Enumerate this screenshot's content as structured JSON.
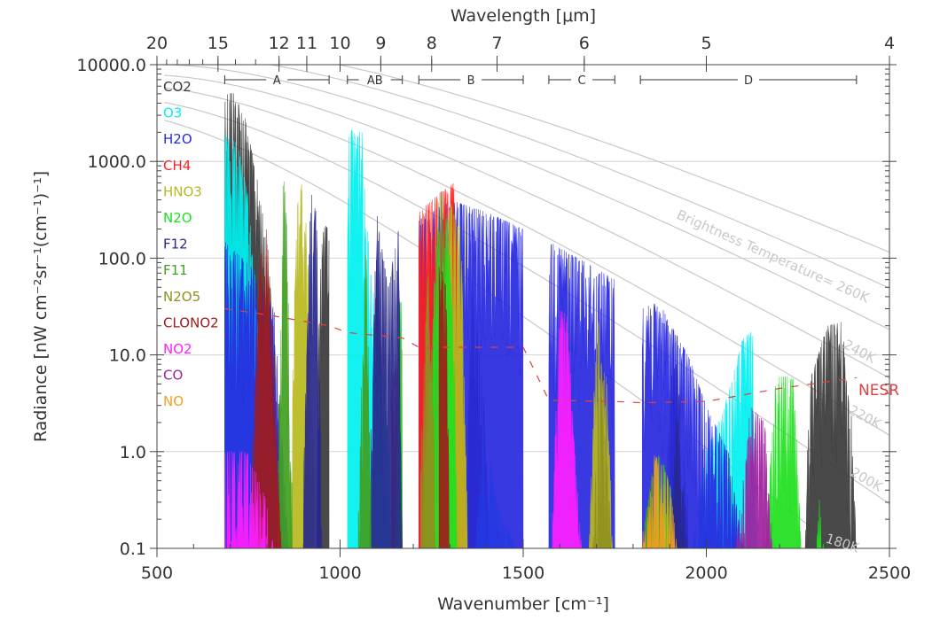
{
  "chart_data": {
    "type": "area",
    "xlabel": "Wavenumber [cm⁻¹]",
    "x2label": "Wavelength [μm]",
    "ylabel": "Radiance [nW cm⁻²sr⁻¹(cm⁻¹)⁻¹]",
    "xlim": [
      500,
      2500
    ],
    "ylim": [
      0.1,
      10000
    ],
    "yscale": "log",
    "grid": "horizontal at decades",
    "x_ticks": [
      "500",
      "1000",
      "1500",
      "2000",
      "2500"
    ],
    "y_ticks": [
      "10000.0",
      "1000.0",
      "100.0",
      "10.0",
      "1.0",
      "0.1"
    ],
    "x2_ticks": [
      {
        "label": "20",
        "um": 20
      },
      {
        "label": "15",
        "um": 15
      },
      {
        "label": "12",
        "um": 12
      },
      {
        "label": "11",
        "um": 11
      },
      {
        "label": "10",
        "um": 10
      },
      {
        "label": "9",
        "um": 9
      },
      {
        "label": "8",
        "um": 8
      },
      {
        "label": "7",
        "um": 7
      },
      {
        "label": "6",
        "um": 6
      },
      {
        "label": "5",
        "um": 5
      },
      {
        "label": "4",
        "um": 4
      }
    ],
    "bands": [
      {
        "label": "A",
        "range": [
          685,
          970
        ]
      },
      {
        "label": "AB",
        "range": [
          1020,
          1170
        ]
      },
      {
        "label": "B",
        "range": [
          1215,
          1500
        ]
      },
      {
        "label": "C",
        "range": [
          1570,
          1750
        ]
      },
      {
        "label": "D",
        "range": [
          1820,
          2410
        ]
      }
    ],
    "brightness_temperature": {
      "label": "Brightness Temperature= 260K",
      "curves": [
        {
          "T": 300,
          "label": ""
        },
        {
          "T": 280,
          "label": ""
        },
        {
          "T": 260,
          "label": "260K"
        },
        {
          "T": 240,
          "label": "240K"
        },
        {
          "T": 220,
          "label": "220K"
        },
        {
          "T": 200,
          "label": "200K"
        },
        {
          "T": 180,
          "label": "180K"
        }
      ],
      "color": "#c8c8c8"
    },
    "nesr": {
      "label": "NESR",
      "color": "#e04040",
      "points": [
        [
          685,
          30
        ],
        [
          800,
          26
        ],
        [
          970,
          20
        ],
        [
          1020,
          17
        ],
        [
          1170,
          15
        ],
        [
          1215,
          12
        ],
        [
          1500,
          12
        ],
        [
          1570,
          3.4
        ],
        [
          1750,
          3.3
        ],
        [
          1820,
          3.2
        ],
        [
          2000,
          3.3
        ],
        [
          2200,
          4.5
        ],
        [
          2410,
          5.8
        ]
      ]
    },
    "series": [
      {
        "name": "CO2",
        "color": "#3a3a3a",
        "envelope": [
          [
            [
              685,
              5000
            ],
            [
              705,
              5500
            ],
            [
              740,
              3000
            ],
            [
              770,
              800
            ],
            [
              800,
              150
            ],
            [
              830,
              5
            ],
            [
              850,
              0.1
            ]
          ],
          [
            [
              935,
              0.1
            ],
            [
              945,
              150
            ],
            [
              960,
              220
            ],
            [
              970,
              200
            ]
          ],
          [
            [
              1080,
              0.1
            ],
            [
              1100,
              150
            ],
            [
              1130,
              0.1
            ]
          ],
          [
            [
              1330,
              0.1
            ],
            [
              1360,
              60
            ],
            [
              1390,
              5
            ],
            [
              1410,
              0.1
            ]
          ],
          [
            [
              1880,
              0.1
            ],
            [
              1910,
              20
            ],
            [
              1950,
              0.3
            ]
          ],
          [
            [
              2270,
              0.1
            ],
            [
              2280,
              5
            ],
            [
              2330,
              20
            ],
            [
              2370,
              22
            ],
            [
              2395,
              3
            ],
            [
              2410,
              0.1
            ]
          ]
        ]
      },
      {
        "name": "O3",
        "color": "#00f0f0",
        "envelope": [
          [
            [
              685,
              2000
            ],
            [
              720,
              1500
            ],
            [
              750,
              400
            ],
            [
              770,
              50
            ],
            [
              790,
              1
            ],
            [
              800,
              0.1
            ]
          ],
          [
            [
              1020,
              1500
            ],
            [
              1030,
              2200
            ],
            [
              1060,
              2000
            ],
            [
              1070,
              300
            ],
            [
              1090,
              50
            ],
            [
              1120,
              5
            ],
            [
              1160,
              0.1
            ]
          ],
          [
            [
              1370,
              0.1
            ],
            [
              1390,
              2
            ],
            [
              1430,
              0.3
            ],
            [
              1480,
              0.1
            ]
          ],
          [
            [
              1960,
              0.1
            ],
            [
              2000,
              1
            ],
            [
              2050,
              3
            ],
            [
              2100,
              15
            ],
            [
              2130,
              18
            ],
            [
              2140,
              0.1
            ]
          ]
        ]
      },
      {
        "name": "H2O",
        "color": "#2828e0",
        "envelope": [
          [
            [
              685,
              150
            ],
            [
              760,
              80
            ],
            [
              820,
              30
            ],
            [
              860,
              0.1
            ]
          ],
          [
            [
              1215,
              250
            ],
            [
              1300,
              400
            ],
            [
              1400,
              300
            ],
            [
              1500,
              200
            ]
          ],
          [
            [
              1570,
              150
            ],
            [
              1650,
              100
            ],
            [
              1750,
              60
            ]
          ],
          [
            [
              1825,
              40
            ],
            [
              1880,
              30
            ],
            [
              1950,
              10
            ],
            [
              2000,
              3
            ],
            [
              2060,
              1
            ],
            [
              2100,
              0.1
            ]
          ]
        ]
      },
      {
        "name": "CH4",
        "color": "#ff2020",
        "envelope": [
          [
            [
              1140,
              5
            ],
            [
              1160,
              20
            ],
            [
              1170,
              15
            ]
          ],
          [
            [
              1215,
              300
            ],
            [
              1280,
              500
            ],
            [
              1310,
              600
            ],
            [
              1330,
              30
            ],
            [
              1345,
              0.1
            ]
          ]
        ]
      },
      {
        "name": "HNO3",
        "color": "#b8b820",
        "envelope": [
          [
            [
              860,
              0.1
            ],
            [
              880,
              300
            ],
            [
              895,
              600
            ],
            [
              910,
              200
            ],
            [
              930,
              0.5
            ]
          ],
          [
            [
              1260,
              1
            ],
            [
              1300,
              400
            ],
            [
              1330,
              200
            ],
            [
              1350,
              0.1
            ]
          ],
          [
            [
              1680,
              0.1
            ],
            [
              1700,
              30
            ],
            [
              1730,
              5
            ],
            [
              1745,
              0.1
            ]
          ]
        ]
      },
      {
        "name": "N2O",
        "color": "#20e020",
        "envelope": [
          [
            [
              1150,
              0.1
            ],
            [
              1165,
              50
            ],
            [
              1170,
              20
            ]
          ],
          [
            [
              1230,
              0.5
            ],
            [
              1270,
              500
            ],
            [
              1290,
              400
            ],
            [
              1310,
              20
            ],
            [
              1320,
              0.1
            ]
          ],
          [
            [
              1840,
              0.1
            ],
            [
              1870,
              1
            ],
            [
              1900,
              0.5
            ],
            [
              1920,
              0.1
            ]
          ],
          [
            [
              2160,
              0.1
            ],
            [
              2190,
              6
            ],
            [
              2240,
              6
            ],
            [
              2260,
              0.1
            ]
          ],
          [
            [
              2300,
              0.1
            ],
            [
              2310,
              0.4
            ],
            [
              2320,
              0.1
            ]
          ]
        ]
      },
      {
        "name": "F12",
        "color": "#28288c",
        "envelope": [
          [
            [
              900,
              0.5
            ],
            [
              920,
              500
            ],
            [
              935,
              300
            ],
            [
              950,
              0.5
            ]
          ],
          [
            [
              1080,
              0.5
            ],
            [
              1100,
              300
            ],
            [
              1130,
              50
            ],
            [
              1160,
              200
            ],
            [
              1170,
              0.5
            ]
          ],
          [
            [
              1900,
              0.1
            ],
            [
              1920,
              3
            ],
            [
              1950,
              0.1
            ]
          ]
        ]
      },
      {
        "name": "F11",
        "color": "#40a020",
        "envelope": [
          [
            [
              830,
              0.5
            ],
            [
              845,
              900
            ],
            [
              855,
              200
            ],
            [
              870,
              0.5
            ]
          ],
          [
            [
              1050,
              0.3
            ],
            [
              1070,
              200
            ],
            [
              1085,
              0.3
            ]
          ],
          [
            [
              1820,
              0.1
            ],
            [
              1860,
              1
            ],
            [
              1880,
              0.2
            ]
          ]
        ]
      },
      {
        "name": "N2O5",
        "color": "#909020",
        "envelope": [
          [
            [
              1220,
              1
            ],
            [
              1240,
              100
            ],
            [
              1260,
              1
            ]
          ],
          [
            [
              1690,
              0.1
            ],
            [
              1710,
              10
            ],
            [
              1740,
              0.2
            ]
          ]
        ]
      },
      {
        "name": "CLONO2",
        "color": "#a01c1c",
        "envelope": [
          [
            [
              760,
              1
            ],
            [
              780,
              100
            ],
            [
              800,
              200
            ],
            [
              820,
              10
            ],
            [
              840,
              0.1
            ]
          ],
          [
            [
              1270,
              100
            ],
            [
              1290,
              50
            ],
            [
              1300,
              0.1
            ]
          ]
        ]
      },
      {
        "name": "NO2",
        "color": "#ff20ff",
        "envelope": [
          [
            [
              685,
              1
            ],
            [
              750,
              1
            ],
            [
              800,
              0.3
            ],
            [
              820,
              0.1
            ]
          ],
          [
            [
              1580,
              0.3
            ],
            [
              1600,
              30
            ],
            [
              1620,
              25
            ],
            [
              1650,
              0.3
            ],
            [
              1660,
              0.1
            ]
          ]
        ]
      },
      {
        "name": "CO",
        "color": "#a020a0",
        "envelope": [
          [
            [
              2080,
              0.1
            ],
            [
              2120,
              3
            ],
            [
              2160,
              2
            ],
            [
              2180,
              0.1
            ]
          ]
        ]
      },
      {
        "name": "NO",
        "color": "#f0a020",
        "envelope": [
          [
            [
              1820,
              0.1
            ],
            [
              1860,
              1
            ],
            [
              1900,
              0.5
            ],
            [
              1920,
              0.1
            ]
          ]
        ]
      }
    ]
  }
}
